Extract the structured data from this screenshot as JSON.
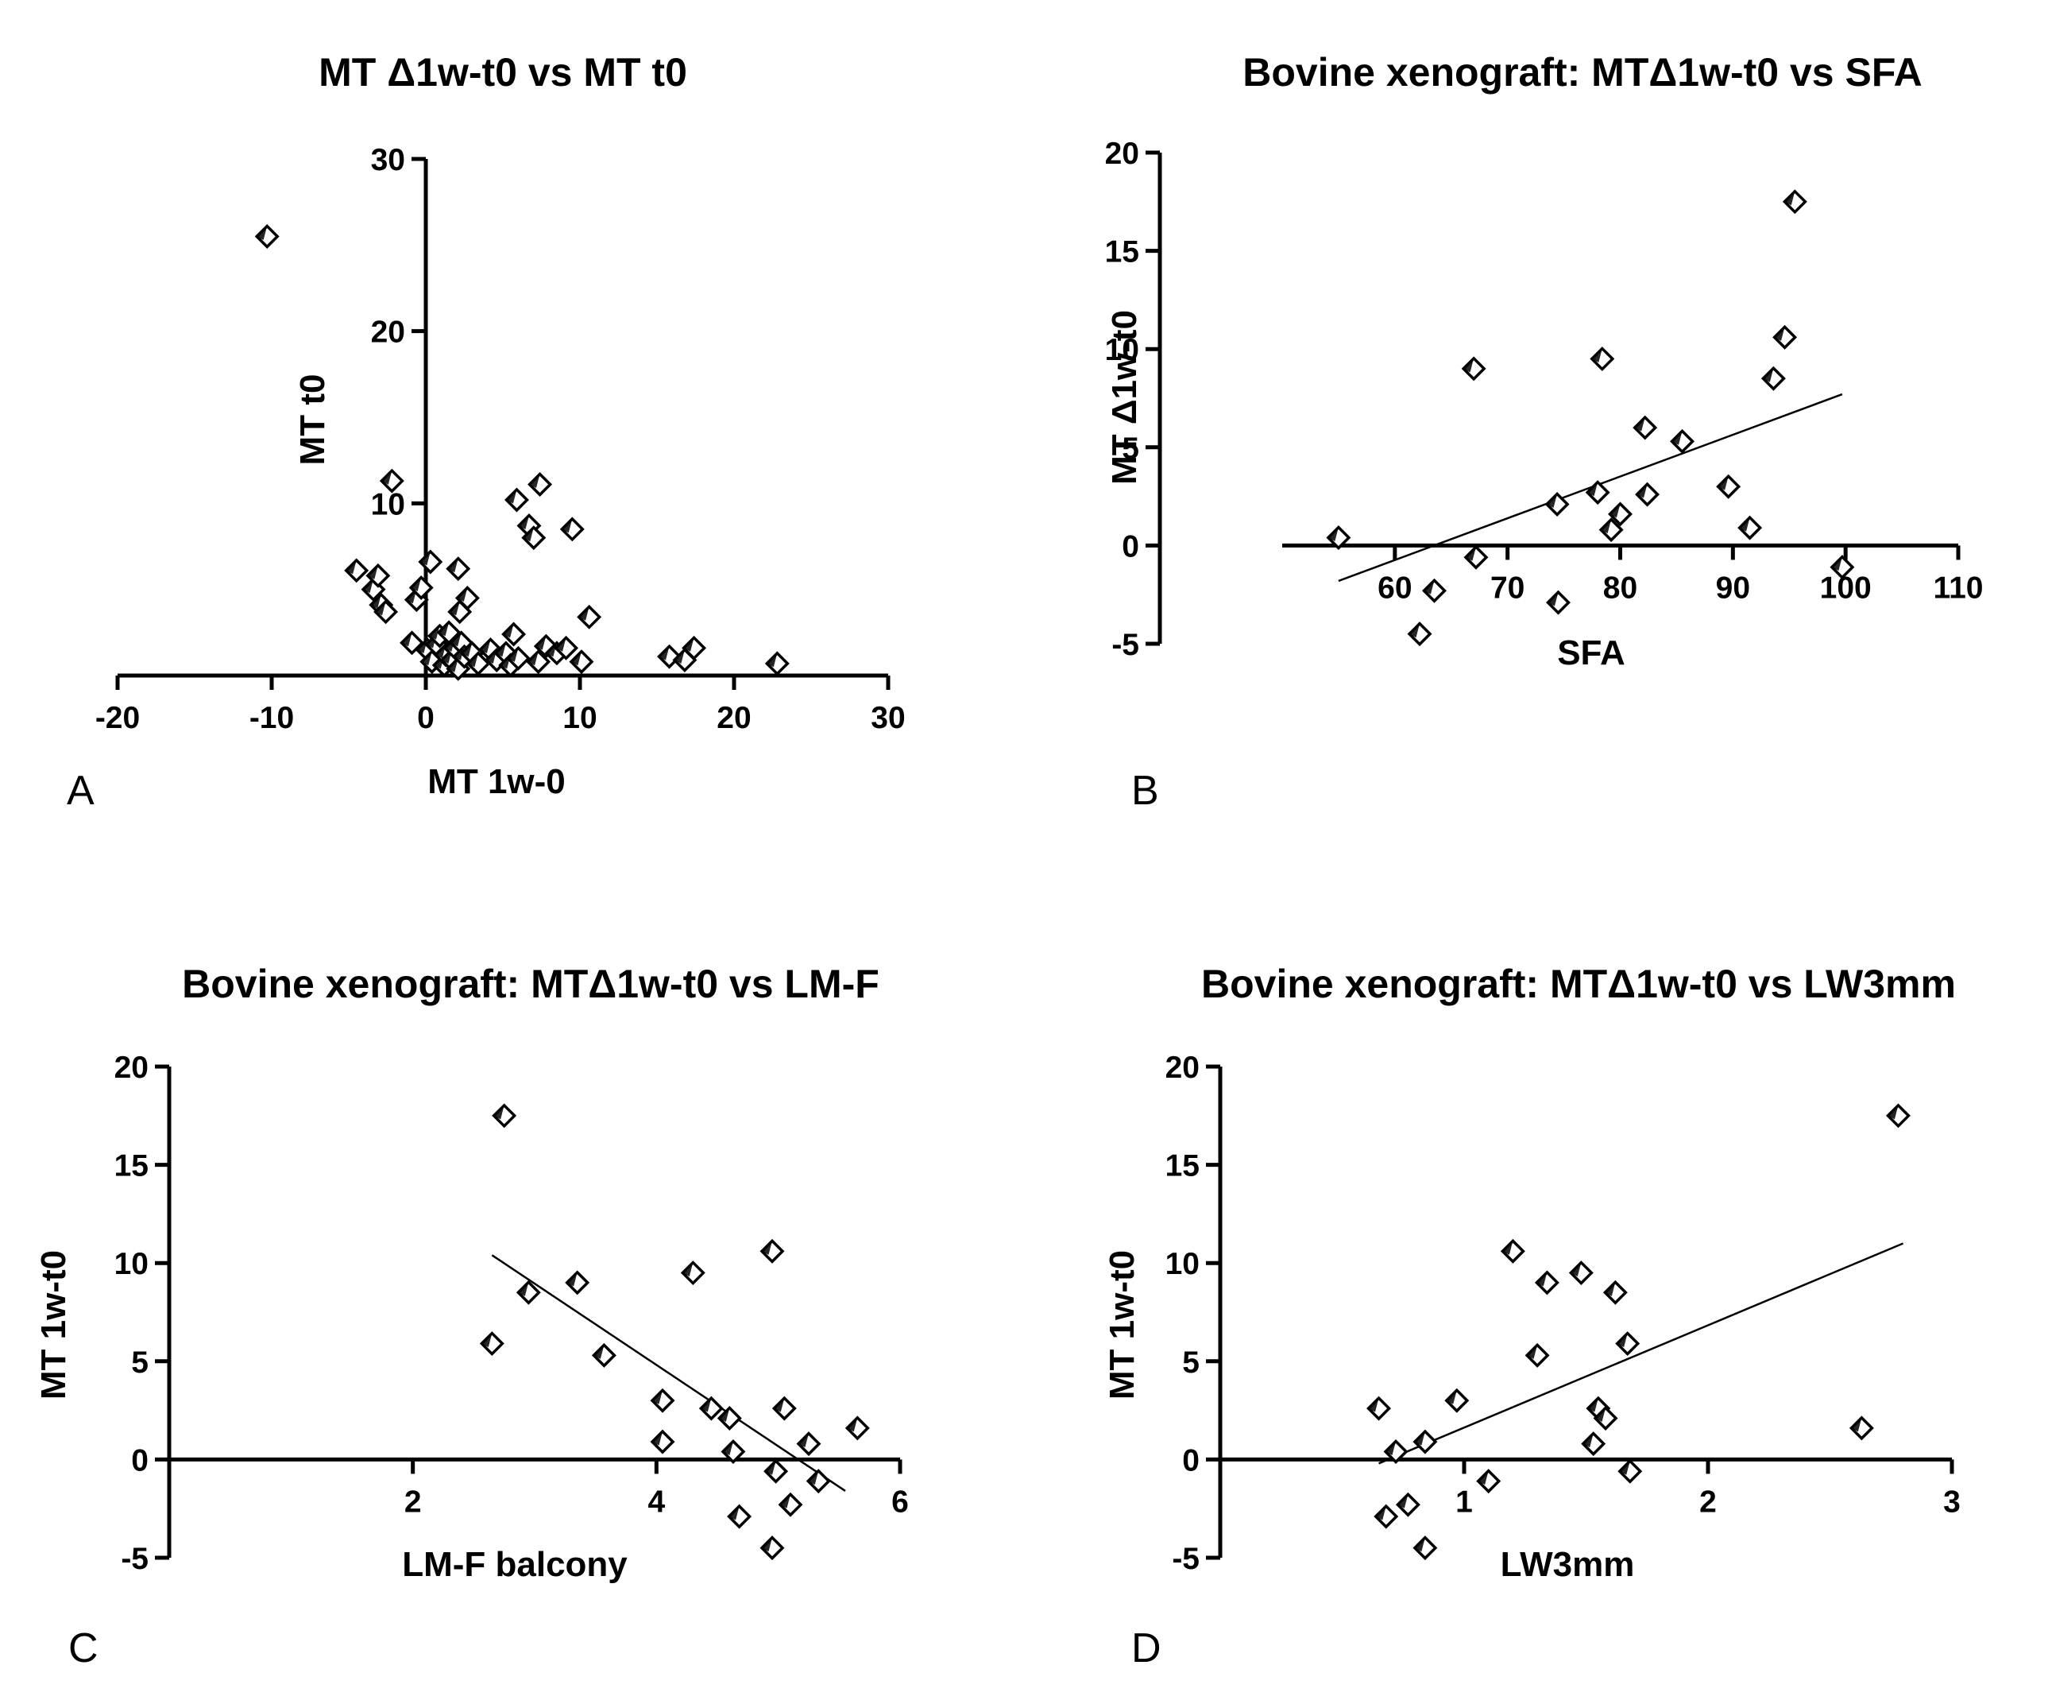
{
  "chart_data": [
    {
      "panel_label": "A",
      "type": "scatter",
      "title": "MT Δ1w-t0 vs MT t0",
      "xlabel": "MT 1w-0",
      "ylabel": "MT t0",
      "xlim": [
        -20,
        30
      ],
      "ylim": [
        0,
        30
      ],
      "xticks": [
        "-20",
        "-10",
        "0",
        "10",
        "20",
        "30"
      ],
      "yticks": [
        "10",
        "20",
        "30"
      ],
      "fit_line": null,
      "points": [
        {
          "x": -10.3,
          "y": 25.5
        },
        {
          "x": -4.5,
          "y": 6.1
        },
        {
          "x": -3.4,
          "y": 5.0
        },
        {
          "x": -3.1,
          "y": 5.8
        },
        {
          "x": -2.9,
          "y": 4.1
        },
        {
          "x": -2.6,
          "y": 3.7
        },
        {
          "x": -2.2,
          "y": 11.3
        },
        {
          "x": -0.9,
          "y": 1.9
        },
        {
          "x": -0.6,
          "y": 4.4
        },
        {
          "x": -0.3,
          "y": 5.1
        },
        {
          "x": 0.3,
          "y": 6.6
        },
        {
          "x": 0.1,
          "y": 1.5
        },
        {
          "x": 0.4,
          "y": 0.8
        },
        {
          "x": 0.7,
          "y": 1.8
        },
        {
          "x": 0.9,
          "y": 2.3
        },
        {
          "x": 1.2,
          "y": 0.6
        },
        {
          "x": 1.3,
          "y": 1.2
        },
        {
          "x": 1.5,
          "y": 2.5
        },
        {
          "x": 1.7,
          "y": 0.9
        },
        {
          "x": 1.9,
          "y": 1.6
        },
        {
          "x": 2.1,
          "y": 0.4
        },
        {
          "x": 2.2,
          "y": 3.7
        },
        {
          "x": 2.3,
          "y": 1.9
        },
        {
          "x": 2.5,
          "y": 1.1
        },
        {
          "x": 2.7,
          "y": 4.5
        },
        {
          "x": 3.0,
          "y": 1.3
        },
        {
          "x": 3.4,
          "y": 0.7
        },
        {
          "x": 2.1,
          "y": 6.2
        },
        {
          "x": 4.2,
          "y": 1.5
        },
        {
          "x": 4.6,
          "y": 0.9
        },
        {
          "x": 5.2,
          "y": 1.3
        },
        {
          "x": 5.5,
          "y": 0.6
        },
        {
          "x": 5.7,
          "y": 2.4
        },
        {
          "x": 6.0,
          "y": 1.0
        },
        {
          "x": 5.9,
          "y": 10.2
        },
        {
          "x": 6.7,
          "y": 8.7
        },
        {
          "x": 7.0,
          "y": 8.0
        },
        {
          "x": 7.3,
          "y": 0.8
        },
        {
          "x": 7.4,
          "y": 11.1
        },
        {
          "x": 7.8,
          "y": 1.7
        },
        {
          "x": 8.5,
          "y": 1.3
        },
        {
          "x": 9.1,
          "y": 1.6
        },
        {
          "x": 9.5,
          "y": 8.5
        },
        {
          "x": 10.1,
          "y": 0.8
        },
        {
          "x": 10.6,
          "y": 3.4
        },
        {
          "x": 15.8,
          "y": 1.1
        },
        {
          "x": 16.8,
          "y": 0.9
        },
        {
          "x": 17.4,
          "y": 1.6
        },
        {
          "x": 22.8,
          "y": 0.7
        }
      ]
    },
    {
      "panel_label": "B",
      "type": "scatter",
      "title": "Bovine xenograft: MTΔ1w-t0 vs SFA",
      "xlabel": "SFA",
      "ylabel": "MT Δ1w-t0",
      "xlim": [
        50,
        110
      ],
      "ylim": [
        -5,
        20
      ],
      "xticks": [
        "60",
        "70",
        "80",
        "90",
        "100",
        "110"
      ],
      "yticks": [
        "-5",
        "0",
        "5",
        "10",
        "15",
        "20"
      ],
      "fit_line": {
        "x": [
          55,
          99.7
        ],
        "y": [
          -1.8,
          7.7
        ]
      },
      "points": [
        {
          "x": 55,
          "y": 0.4
        },
        {
          "x": 62.2,
          "y": -4.5
        },
        {
          "x": 63.5,
          "y": -2.3
        },
        {
          "x": 67,
          "y": 9.0
        },
        {
          "x": 67.2,
          "y": -0.6
        },
        {
          "x": 74.5,
          "y": -2.9
        },
        {
          "x": 74.4,
          "y": 2.1
        },
        {
          "x": 78,
          "y": 2.7
        },
        {
          "x": 78.4,
          "y": 9.5
        },
        {
          "x": 79.2,
          "y": 0.8
        },
        {
          "x": 80,
          "y": 1.6
        },
        {
          "x": 82.2,
          "y": 6.0
        },
        {
          "x": 82.4,
          "y": 2.6
        },
        {
          "x": 85.5,
          "y": 5.3
        },
        {
          "x": 89.6,
          "y": 3.0
        },
        {
          "x": 91.5,
          "y": 0.9
        },
        {
          "x": 93.6,
          "y": 8.5
        },
        {
          "x": 94.6,
          "y": 10.6
        },
        {
          "x": 95.5,
          "y": 17.5
        },
        {
          "x": 99.7,
          "y": -1.1
        }
      ]
    },
    {
      "panel_label": "C",
      "type": "scatter",
      "title": "Bovine xenograft: MTΔ1w-t0 vs LM-F",
      "xlabel": "LM-F balcony",
      "ylabel": "MT 1w-t0",
      "xlim": [
        0,
        6
      ],
      "ylim": [
        -5,
        20
      ],
      "xticks": [
        "2",
        "4",
        "6"
      ],
      "yticks": [
        "-5",
        "0",
        "5",
        "10",
        "15",
        "20"
      ],
      "fit_line": {
        "x": [
          2.65,
          5.55
        ],
        "y": [
          10.4,
          -1.6
        ]
      },
      "points": [
        {
          "x": 2.65,
          "y": 5.9
        },
        {
          "x": 2.75,
          "y": 17.5
        },
        {
          "x": 2.95,
          "y": 8.5
        },
        {
          "x": 3.35,
          "y": 9.0
        },
        {
          "x": 3.57,
          "y": 5.3
        },
        {
          "x": 4.05,
          "y": 3.0
        },
        {
          "x": 4.05,
          "y": 0.9
        },
        {
          "x": 4.3,
          "y": 9.5
        },
        {
          "x": 4.45,
          "y": 2.6
        },
        {
          "x": 4.6,
          "y": 2.1
        },
        {
          "x": 4.63,
          "y": 0.4
        },
        {
          "x": 4.68,
          "y": -2.9
        },
        {
          "x": 4.95,
          "y": 10.6
        },
        {
          "x": 4.95,
          "y": -4.5
        },
        {
          "x": 4.98,
          "y": -0.6
        },
        {
          "x": 5.05,
          "y": 2.6
        },
        {
          "x": 5.1,
          "y": -2.3
        },
        {
          "x": 5.25,
          "y": 0.8
        },
        {
          "x": 5.33,
          "y": -1.1
        },
        {
          "x": 5.65,
          "y": 1.6
        }
      ]
    },
    {
      "panel_label": "D",
      "type": "scatter",
      "title": "Bovine xenograft: MTΔ1w-t0 vs LW3mm",
      "xlabel": "LW3mm",
      "ylabel": "MT 1w-t0",
      "xlim": [
        0,
        3
      ],
      "ylim": [
        -5,
        20
      ],
      "xticks": [
        "1",
        "2",
        "3"
      ],
      "yticks": [
        "-5",
        "0",
        "5",
        "10",
        "15",
        "20"
      ],
      "fit_line": {
        "x": [
          0.65,
          2.8
        ],
        "y": [
          -0.2,
          11.0
        ]
      },
      "points": [
        {
          "x": 0.65,
          "y": 2.6
        },
        {
          "x": 0.68,
          "y": -2.9
        },
        {
          "x": 0.72,
          "y": 0.4
        },
        {
          "x": 0.77,
          "y": -2.3
        },
        {
          "x": 0.84,
          "y": 0.9
        },
        {
          "x": 0.84,
          "y": -4.5
        },
        {
          "x": 0.97,
          "y": 3.0
        },
        {
          "x": 1.1,
          "y": -1.1
        },
        {
          "x": 1.2,
          "y": 10.6
        },
        {
          "x": 1.3,
          "y": 5.3
        },
        {
          "x": 1.34,
          "y": 9.0
        },
        {
          "x": 1.48,
          "y": 9.5
        },
        {
          "x": 1.53,
          "y": 0.8
        },
        {
          "x": 1.55,
          "y": 2.6
        },
        {
          "x": 1.58,
          "y": 2.1
        },
        {
          "x": 1.62,
          "y": 8.5
        },
        {
          "x": 1.67,
          "y": 5.9
        },
        {
          "x": 1.68,
          "y": -0.6
        },
        {
          "x": 2.63,
          "y": 1.6
        },
        {
          "x": 2.78,
          "y": 17.5
        }
      ]
    }
  ]
}
